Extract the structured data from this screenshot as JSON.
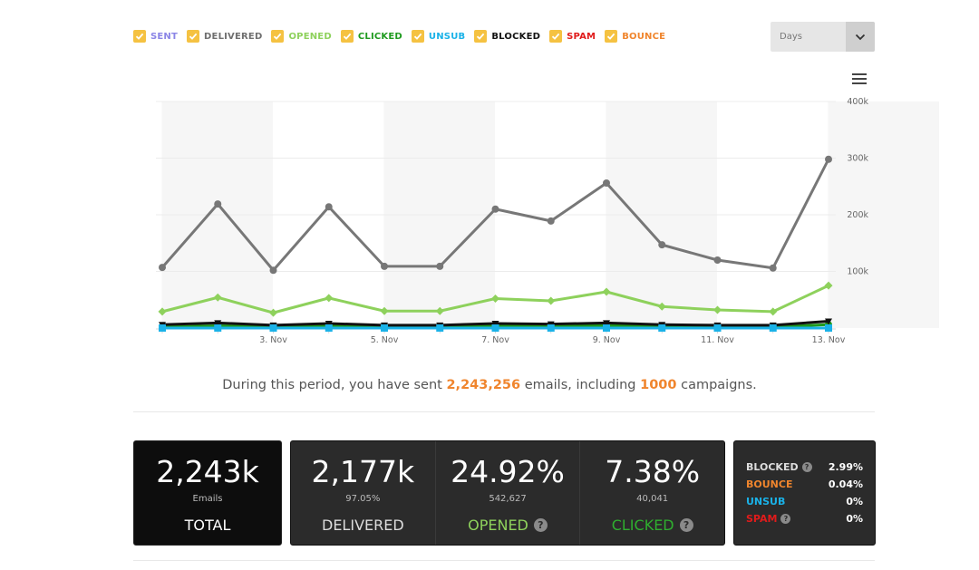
{
  "legend": [
    {
      "label": "SENT",
      "color": "#8a84e6"
    },
    {
      "label": "DELIVERED",
      "color": "#6f6f6f"
    },
    {
      "label": "OPENED",
      "color": "#8ed15c"
    },
    {
      "label": "CLICKED",
      "color": "#1e9a1e"
    },
    {
      "label": "UNSUB",
      "color": "#1ab2e8"
    },
    {
      "label": "BLOCKED",
      "color": "#111111"
    },
    {
      "label": "SPAM",
      "color": "#e01b1b"
    },
    {
      "label": "BOUNCE",
      "color": "#f0852d"
    }
  ],
  "period_select": {
    "value": "Days"
  },
  "chart_data": {
    "type": "line",
    "x": [
      "1. Nov",
      "2. Nov",
      "3. Nov",
      "4. Nov",
      "5. Nov",
      "6. Nov",
      "7. Nov",
      "8. Nov",
      "9. Nov",
      "10. Nov",
      "11. Nov",
      "12. Nov",
      "13. Nov"
    ],
    "x_tick_labels": [
      "3. Nov",
      "5. Nov",
      "7. Nov",
      "9. Nov",
      "11. Nov",
      "13. Nov"
    ],
    "y_tick_labels": [
      "100k",
      "200k",
      "300k",
      "400k"
    ],
    "ylim": [
      0,
      400000
    ],
    "grid": true,
    "series": [
      {
        "name": "DELIVERED",
        "color": "#777777",
        "marker": "circle",
        "values": [
          107000,
          219000,
          102000,
          214000,
          109000,
          109000,
          210000,
          189000,
          256000,
          147000,
          120000,
          106000,
          298000
        ]
      },
      {
        "name": "OPENED",
        "color": "#8ed15c",
        "marker": "diamond",
        "values": [
          29000,
          54000,
          27000,
          53000,
          30000,
          30000,
          52000,
          48000,
          64000,
          38000,
          32000,
          29000,
          75000
        ]
      },
      {
        "name": "CLICKED",
        "color": "#1e9a1e",
        "marker": "circle",
        "values": [
          2000,
          4000,
          2000,
          4000,
          2000,
          2000,
          4000,
          3500,
          5000,
          3000,
          2500,
          2000,
          6000
        ]
      },
      {
        "name": "BLOCKED",
        "color": "#111111",
        "marker": "triangle",
        "values": [
          6000,
          9000,
          5000,
          8000,
          5000,
          5000,
          8000,
          7000,
          9000,
          6000,
          5000,
          5000,
          12000
        ]
      },
      {
        "name": "UNSUB",
        "color": "#1ab2e8",
        "marker": "square",
        "values": [
          0,
          0,
          0,
          0,
          0,
          0,
          0,
          0,
          0,
          0,
          0,
          0,
          0
        ]
      }
    ]
  },
  "summary": {
    "prefix": "During this period, you have sent",
    "emails": "2,243,256",
    "middle": "emails, including",
    "campaigns": "1000",
    "suffix": "campaigns."
  },
  "stats": {
    "total": {
      "big": "2,243k",
      "sub": "Emails",
      "name": "TOTAL"
    },
    "delivered": {
      "big": "2,177k",
      "sub": "97.05%",
      "name": "DELIVERED",
      "color": "#dddddd"
    },
    "opened": {
      "big": "24.92%",
      "sub": "542,627",
      "name": "OPENED",
      "color": "#8ed15c",
      "help": "?"
    },
    "clicked": {
      "big": "7.38%",
      "sub": "40,041",
      "name": "CLICKED",
      "color": "#2fae2f",
      "help": "?"
    }
  },
  "side_stats": [
    {
      "label": "BLOCKED",
      "value": "2.99%",
      "color": "#dddddd",
      "help": "?"
    },
    {
      "label": "BOUNCE",
      "value": "0.04%",
      "color": "#f0852d",
      "help": ""
    },
    {
      "label": "UNSUB",
      "value": "0%",
      "color": "#1ab2e8",
      "help": ""
    },
    {
      "label": "SPAM",
      "value": "0%",
      "color": "#e01b1b",
      "help": "?"
    }
  ]
}
